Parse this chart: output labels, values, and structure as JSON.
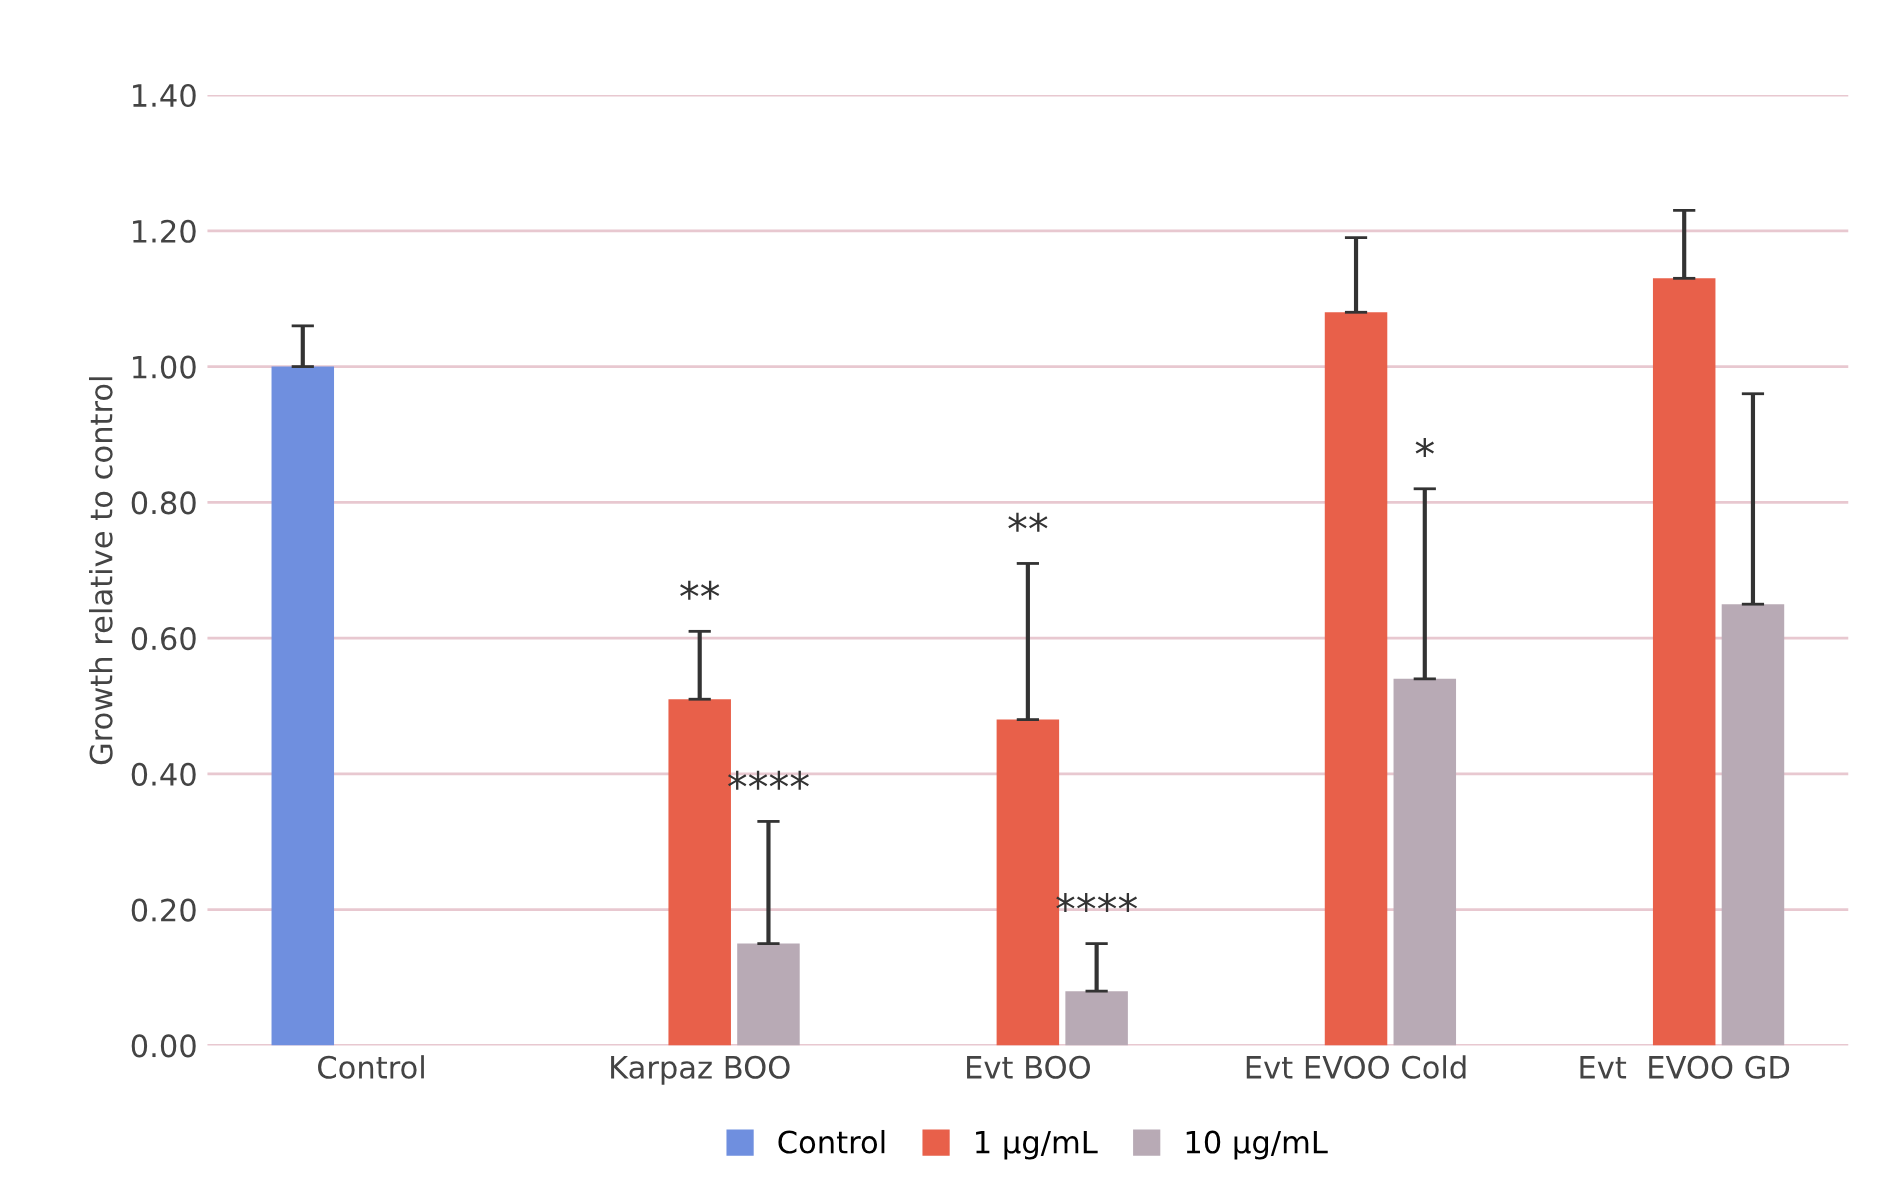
{
  "chart_data": {
    "type": "bar",
    "ylabel": "Growth relative to control",
    "categories": [
      "Control",
      "Karpaz BOO",
      "Evt BOO",
      "Evt EVOO Cold",
      "Evt  EVOO GD"
    ],
    "series": [
      {
        "name": "Control",
        "color": "#6f8fdf",
        "values": [
          1.0,
          null,
          null,
          null,
          null
        ],
        "errors": [
          [
            1.0,
            1.06
          ],
          null,
          null,
          null,
          null
        ]
      },
      {
        "name": "1 µg/mL",
        "color": "#e8604a",
        "values": [
          null,
          0.51,
          0.48,
          1.08,
          1.13
        ],
        "errors": [
          null,
          [
            0.51,
            0.61
          ],
          [
            0.48,
            0.71
          ],
          [
            1.08,
            1.19
          ],
          [
            1.13,
            1.23
          ]
        ]
      },
      {
        "name": "10 µg/mL",
        "color": "#b8aab5",
        "values": [
          null,
          0.15,
          0.08,
          0.54,
          0.65
        ],
        "errors": [
          null,
          [
            0.15,
            0.33
          ],
          [
            0.08,
            0.15
          ],
          [
            0.54,
            0.82
          ],
          [
            0.65,
            0.96
          ]
        ]
      }
    ],
    "ylim": [
      0,
      1.4
    ],
    "yticks": [
      {
        "value": 0,
        "label": "0.00"
      },
      {
        "value": 0.2,
        "label": "0.20"
      },
      {
        "value": 0.4,
        "label": "0.40"
      },
      {
        "value": 0.6,
        "label": "0.60"
      },
      {
        "value": 0.8,
        "label": "0.80"
      },
      {
        "value": 1.0,
        "label": "1.00"
      },
      {
        "value": 1.2,
        "label": "1.20"
      },
      {
        "value": 1.4,
        "label": "1.40"
      }
    ],
    "grid": "y",
    "legend": "bottom",
    "annotations": [
      "**",
      "****",
      "**",
      "****",
      "*"
    ]
  }
}
